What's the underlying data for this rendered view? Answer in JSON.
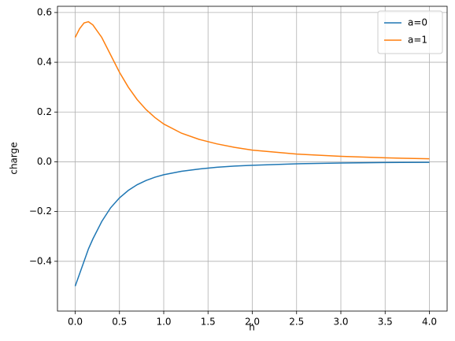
{
  "chart_data": {
    "type": "line",
    "x_label": "h",
    "y_label": "charge",
    "x": [
      0,
      0.05,
      0.1,
      0.15,
      0.2,
      0.3,
      0.4,
      0.5,
      0.6,
      0.7,
      0.8,
      0.9,
      1.0,
      1.2,
      1.4,
      1.6,
      1.8,
      2.0,
      2.5,
      3.0,
      3.5,
      4.0
    ],
    "series": [
      {
        "name": "a=0",
        "color": "#1f77b4",
        "values": [
          -0.5,
          -0.45,
          -0.4,
          -0.35,
          -0.31,
          -0.24,
          -0.185,
          -0.145,
          -0.115,
          -0.092,
          -0.075,
          -0.062,
          -0.052,
          -0.038,
          -0.029,
          -0.022,
          -0.017,
          -0.014,
          -0.008,
          -0.005,
          -0.003,
          -0.002
        ]
      },
      {
        "name": "a=1",
        "color": "#ff7f0e",
        "values": [
          0.5,
          0.535,
          0.558,
          0.563,
          0.55,
          0.5,
          0.43,
          0.36,
          0.3,
          0.25,
          0.21,
          0.178,
          0.152,
          0.115,
          0.09,
          0.072,
          0.058,
          0.047,
          0.031,
          0.022,
          0.016,
          0.012
        ]
      }
    ],
    "xlim": [
      -0.2,
      4.2
    ],
    "xticks": [
      {
        "value": 0,
        "label": "0.0"
      },
      0.5,
      {
        "value": 1,
        "label": "1.0"
      },
      1.5,
      {
        "value": 2,
        "label": "2.0"
      },
      2.5,
      {
        "value": 3,
        "label": "3.0"
      },
      3.5,
      {
        "value": 4,
        "label": "4.0"
      }
    ],
    "ylim": [
      -0.6,
      0.625
    ],
    "yticks": [
      {
        "value": -0.4,
        "label": "−0.4"
      },
      {
        "value": -0.2,
        "label": "−0.2"
      },
      {
        "value": 0,
        "label": "0.0"
      },
      0.2,
      0.4,
      0.6
    ],
    "grid": true,
    "legend": "upper right"
  }
}
